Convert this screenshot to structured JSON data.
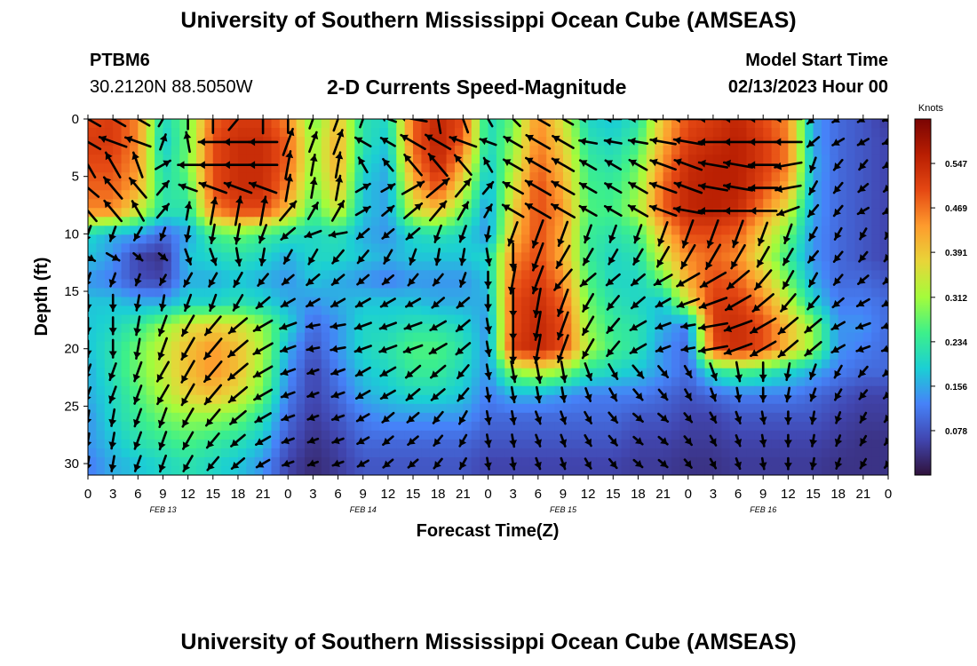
{
  "page": {
    "title": "University of Southern Mississippi Ocean Cube (AMSEAS)",
    "footer_title": "University of Southern Mississippi Ocean Cube (AMSEAS)",
    "station": "PTBM6",
    "coordinates": "30.2120N  88.5050W",
    "model_start_label": "Model Start Time",
    "model_start_value": "02/13/2023 Hour 00"
  },
  "colors": {
    "colormap": [
      "#30123b",
      "#4146b0",
      "#4682f8",
      "#1bcfd4",
      "#3df08a",
      "#a4fc3b",
      "#e8d539",
      "#fe9b2d",
      "#e54813",
      "#b81e02",
      "#7a0403"
    ],
    "arrow": "#000000"
  },
  "chart_data": {
    "type": "heatmap",
    "title": "2-D Currents Speed-Magnitude",
    "xlabel": "Forecast Time(Z)",
    "ylabel": "Depth (ft)",
    "x_tick_labels": [
      "0",
      "3",
      "6",
      "9",
      "12",
      "15",
      "18",
      "21",
      "0",
      "3",
      "6",
      "9",
      "12",
      "15",
      "18",
      "21",
      "0",
      "3",
      "6",
      "9",
      "12",
      "15",
      "18",
      "21",
      "0",
      "3",
      "6",
      "9",
      "12",
      "15",
      "18",
      "21",
      "0"
    ],
    "day_labels": [
      "FEB 13",
      "FEB 14",
      "FEB 15",
      "FEB 16"
    ],
    "x_range_hours": [
      0,
      96
    ],
    "y_tick_labels": [
      "0",
      "5",
      "10",
      "15",
      "20",
      "25",
      "30"
    ],
    "ylim": [
      31,
      0
    ],
    "colorbar": {
      "title": "Knots",
      "range": [
        0,
        0.625
      ],
      "tick_labels": [
        "0.547",
        "0.469",
        "0.391",
        "0.312",
        "0.234",
        "0.156",
        "0.078"
      ]
    },
    "hours": [
      0,
      3,
      6,
      9,
      12,
      15,
      18,
      21,
      24,
      27,
      30,
      33,
      36,
      39,
      42,
      45,
      48,
      51,
      54,
      57,
      60,
      63,
      66,
      69,
      72,
      75,
      78,
      81,
      84,
      87,
      90,
      93,
      96
    ],
    "depths_ft": [
      0,
      2,
      4,
      6,
      8,
      10,
      12,
      14,
      16,
      18,
      20,
      22,
      24,
      26,
      28,
      30
    ],
    "speed_knots": [
      [
        0.5,
        0.52,
        0.45,
        0.2,
        0.28,
        0.48,
        0.52,
        0.52,
        0.45,
        0.28,
        0.4,
        0.22,
        0.2,
        0.48,
        0.55,
        0.5,
        0.2,
        0.28,
        0.45,
        0.35,
        0.2,
        0.18,
        0.22,
        0.4,
        0.5,
        0.52,
        0.55,
        0.5,
        0.45,
        0.15,
        0.1,
        0.08,
        0.05
      ],
      [
        0.52,
        0.52,
        0.45,
        0.18,
        0.28,
        0.5,
        0.54,
        0.54,
        0.48,
        0.3,
        0.42,
        0.22,
        0.18,
        0.48,
        0.56,
        0.48,
        0.2,
        0.3,
        0.46,
        0.38,
        0.22,
        0.2,
        0.25,
        0.42,
        0.52,
        0.54,
        0.56,
        0.52,
        0.46,
        0.15,
        0.1,
        0.08,
        0.06
      ],
      [
        0.5,
        0.5,
        0.44,
        0.2,
        0.28,
        0.5,
        0.54,
        0.54,
        0.48,
        0.3,
        0.42,
        0.2,
        0.16,
        0.45,
        0.55,
        0.42,
        0.18,
        0.32,
        0.48,
        0.4,
        0.24,
        0.22,
        0.28,
        0.45,
        0.54,
        0.56,
        0.56,
        0.52,
        0.46,
        0.16,
        0.1,
        0.08,
        0.06
      ],
      [
        0.48,
        0.48,
        0.42,
        0.22,
        0.25,
        0.5,
        0.54,
        0.54,
        0.45,
        0.28,
        0.4,
        0.18,
        0.15,
        0.4,
        0.5,
        0.35,
        0.16,
        0.35,
        0.5,
        0.42,
        0.25,
        0.24,
        0.3,
        0.48,
        0.55,
        0.56,
        0.56,
        0.5,
        0.42,
        0.15,
        0.1,
        0.08,
        0.06
      ],
      [
        0.45,
        0.45,
        0.35,
        0.22,
        0.22,
        0.45,
        0.5,
        0.5,
        0.4,
        0.25,
        0.35,
        0.18,
        0.15,
        0.35,
        0.4,
        0.28,
        0.14,
        0.38,
        0.5,
        0.44,
        0.26,
        0.25,
        0.32,
        0.48,
        0.55,
        0.56,
        0.54,
        0.45,
        0.35,
        0.15,
        0.1,
        0.08,
        0.06
      ],
      [
        0.2,
        0.16,
        0.15,
        0.1,
        0.15,
        0.25,
        0.28,
        0.25,
        0.22,
        0.2,
        0.22,
        0.16,
        0.14,
        0.2,
        0.22,
        0.2,
        0.14,
        0.4,
        0.5,
        0.42,
        0.24,
        0.22,
        0.25,
        0.4,
        0.5,
        0.5,
        0.48,
        0.38,
        0.28,
        0.14,
        0.1,
        0.08,
        0.06
      ],
      [
        0.18,
        0.14,
        0.06,
        0.04,
        0.18,
        0.2,
        0.22,
        0.2,
        0.16,
        0.2,
        0.2,
        0.18,
        0.16,
        0.18,
        0.18,
        0.18,
        0.2,
        0.45,
        0.5,
        0.42,
        0.24,
        0.2,
        0.22,
        0.35,
        0.45,
        0.48,
        0.45,
        0.35,
        0.24,
        0.14,
        0.1,
        0.08,
        0.06
      ],
      [
        0.14,
        0.12,
        0.07,
        0.06,
        0.16,
        0.16,
        0.18,
        0.16,
        0.14,
        0.18,
        0.16,
        0.14,
        0.12,
        0.14,
        0.14,
        0.14,
        0.18,
        0.48,
        0.52,
        0.45,
        0.26,
        0.2,
        0.2,
        0.28,
        0.42,
        0.5,
        0.48,
        0.4,
        0.28,
        0.16,
        0.1,
        0.1,
        0.08
      ],
      [
        0.18,
        0.18,
        0.16,
        0.16,
        0.2,
        0.2,
        0.22,
        0.2,
        0.16,
        0.14,
        0.16,
        0.18,
        0.18,
        0.18,
        0.16,
        0.16,
        0.16,
        0.5,
        0.54,
        0.48,
        0.28,
        0.22,
        0.2,
        0.18,
        0.35,
        0.52,
        0.52,
        0.45,
        0.34,
        0.2,
        0.12,
        0.12,
        0.1
      ],
      [
        0.18,
        0.2,
        0.24,
        0.3,
        0.36,
        0.38,
        0.36,
        0.3,
        0.2,
        0.1,
        0.14,
        0.2,
        0.2,
        0.22,
        0.22,
        0.2,
        0.14,
        0.5,
        0.55,
        0.5,
        0.3,
        0.24,
        0.22,
        0.16,
        0.12,
        0.52,
        0.54,
        0.5,
        0.4,
        0.3,
        0.14,
        0.14,
        0.1
      ],
      [
        0.18,
        0.22,
        0.28,
        0.34,
        0.4,
        0.44,
        0.4,
        0.32,
        0.16,
        0.08,
        0.14,
        0.2,
        0.22,
        0.26,
        0.26,
        0.22,
        0.14,
        0.52,
        0.55,
        0.5,
        0.32,
        0.25,
        0.22,
        0.14,
        0.1,
        0.5,
        0.54,
        0.5,
        0.4,
        0.3,
        0.14,
        0.12,
        0.1
      ],
      [
        0.16,
        0.22,
        0.28,
        0.34,
        0.4,
        0.44,
        0.4,
        0.3,
        0.14,
        0.06,
        0.12,
        0.18,
        0.2,
        0.24,
        0.24,
        0.2,
        0.14,
        0.3,
        0.34,
        0.3,
        0.22,
        0.2,
        0.18,
        0.14,
        0.1,
        0.22,
        0.26,
        0.24,
        0.2,
        0.16,
        0.12,
        0.1,
        0.1
      ],
      [
        0.16,
        0.2,
        0.26,
        0.32,
        0.38,
        0.4,
        0.36,
        0.28,
        0.12,
        0.06,
        0.1,
        0.16,
        0.18,
        0.2,
        0.2,
        0.18,
        0.12,
        0.16,
        0.16,
        0.14,
        0.12,
        0.12,
        0.12,
        0.1,
        0.08,
        0.1,
        0.12,
        0.12,
        0.12,
        0.1,
        0.08,
        0.06,
        0.06
      ],
      [
        0.14,
        0.2,
        0.24,
        0.28,
        0.3,
        0.3,
        0.28,
        0.22,
        0.1,
        0.05,
        0.08,
        0.12,
        0.14,
        0.14,
        0.14,
        0.14,
        0.1,
        0.1,
        0.1,
        0.1,
        0.1,
        0.1,
        0.08,
        0.08,
        0.06,
        0.06,
        0.08,
        0.08,
        0.08,
        0.08,
        0.06,
        0.05,
        0.05
      ],
      [
        0.14,
        0.18,
        0.22,
        0.24,
        0.26,
        0.24,
        0.22,
        0.18,
        0.08,
        0.04,
        0.06,
        0.1,
        0.1,
        0.1,
        0.1,
        0.1,
        0.08,
        0.08,
        0.08,
        0.08,
        0.08,
        0.08,
        0.06,
        0.06,
        0.05,
        0.05,
        0.06,
        0.06,
        0.06,
        0.06,
        0.05,
        0.04,
        0.04
      ],
      [
        0.12,
        0.16,
        0.18,
        0.2,
        0.22,
        0.2,
        0.18,
        0.14,
        0.06,
        0.03,
        0.05,
        0.08,
        0.08,
        0.08,
        0.08,
        0.08,
        0.06,
        0.06,
        0.06,
        0.06,
        0.06,
        0.06,
        0.05,
        0.05,
        0.04,
        0.04,
        0.05,
        0.05,
        0.05,
        0.05,
        0.04,
        0.04,
        0.04
      ]
    ],
    "arrow_directions_deg": [
      [
        300,
        300,
        300,
        30,
        0,
        0,
        40,
        0,
        0,
        20,
        20,
        20,
        290,
        280,
        350,
        340,
        330,
        315,
        300,
        300,
        270,
        270,
        270,
        270,
        270,
        270,
        270,
        270,
        270,
        230,
        240,
        240,
        250
      ],
      [
        300,
        290,
        290,
        20,
        350,
        270,
        270,
        270,
        20,
        20,
        20,
        300,
        300,
        300,
        300,
        290,
        290,
        300,
        300,
        300,
        280,
        280,
        280,
        280,
        280,
        270,
        270,
        270,
        270,
        230,
        240,
        240,
        250
      ],
      [
        330,
        330,
        340,
        60,
        270,
        270,
        270,
        270,
        10,
        10,
        10,
        330,
        320,
        320,
        320,
        320,
        330,
        300,
        300,
        300,
        300,
        300,
        300,
        290,
        290,
        280,
        280,
        270,
        260,
        200,
        220,
        220,
        240
      ],
      [
        310,
        320,
        320,
        40,
        290,
        290,
        290,
        290,
        10,
        10,
        10,
        60,
        60,
        60,
        50,
        40,
        40,
        300,
        300,
        300,
        300,
        300,
        300,
        290,
        290,
        280,
        280,
        270,
        260,
        210,
        220,
        230,
        230
      ],
      [
        320,
        320,
        330,
        40,
        10,
        10,
        10,
        10,
        40,
        30,
        30,
        60,
        50,
        50,
        40,
        30,
        30,
        300,
        300,
        300,
        300,
        300,
        300,
        290,
        280,
        270,
        270,
        270,
        250,
        220,
        220,
        240,
        240
      ],
      [
        200,
        200,
        210,
        200,
        190,
        190,
        190,
        200,
        230,
        250,
        260,
        230,
        230,
        230,
        200,
        200,
        190,
        200,
        200,
        200,
        200,
        200,
        200,
        200,
        200,
        200,
        200,
        200,
        200,
        210,
        210,
        210,
        210
      ],
      [
        120,
        120,
        130,
        130,
        160,
        160,
        170,
        190,
        210,
        210,
        220,
        220,
        210,
        200,
        190,
        190,
        170,
        180,
        200,
        210,
        210,
        210,
        210,
        210,
        210,
        210,
        210,
        210,
        210,
        220,
        220,
        220,
        220
      ],
      [
        200,
        200,
        200,
        210,
        210,
        210,
        210,
        220,
        230,
        230,
        230,
        230,
        230,
        220,
        220,
        200,
        180,
        190,
        200,
        220,
        230,
        230,
        230,
        240,
        240,
        240,
        230,
        220,
        210,
        210,
        220,
        230,
        230
      ],
      [
        180,
        180,
        190,
        190,
        200,
        200,
        210,
        230,
        240,
        240,
        240,
        240,
        240,
        240,
        230,
        230,
        180,
        180,
        190,
        200,
        210,
        220,
        230,
        240,
        250,
        250,
        240,
        230,
        220,
        220,
        230,
        240,
        240
      ],
      [
        180,
        180,
        190,
        200,
        210,
        220,
        230,
        240,
        250,
        260,
        260,
        250,
        250,
        250,
        240,
        230,
        170,
        180,
        190,
        200,
        210,
        220,
        240,
        250,
        260,
        260,
        250,
        240,
        230,
        230,
        240,
        250,
        250
      ],
      [
        180,
        180,
        190,
        200,
        210,
        220,
        230,
        240,
        250,
        260,
        260,
        250,
        250,
        250,
        240,
        230,
        170,
        180,
        190,
        200,
        210,
        220,
        240,
        250,
        260,
        260,
        250,
        240,
        230,
        230,
        240,
        250,
        250
      ],
      [
        200,
        200,
        200,
        210,
        210,
        220,
        230,
        240,
        250,
        250,
        250,
        240,
        240,
        230,
        230,
        220,
        170,
        170,
        170,
        170,
        160,
        150,
        140,
        140,
        150,
        160,
        170,
        180,
        190,
        200,
        210,
        220,
        230
      ],
      [
        200,
        200,
        200,
        210,
        210,
        220,
        230,
        240,
        250,
        250,
        250,
        240,
        240,
        230,
        230,
        220,
        170,
        170,
        170,
        170,
        160,
        150,
        140,
        140,
        150,
        160,
        170,
        180,
        190,
        200,
        210,
        220,
        230
      ],
      [
        190,
        190,
        200,
        200,
        210,
        220,
        230,
        240,
        250,
        250,
        250,
        240,
        230,
        230,
        220,
        210,
        170,
        170,
        160,
        160,
        150,
        140,
        130,
        130,
        140,
        150,
        160,
        170,
        180,
        190,
        200,
        210,
        220
      ],
      [
        190,
        190,
        200,
        200,
        210,
        220,
        230,
        240,
        250,
        250,
        250,
        240,
        230,
        230,
        220,
        210,
        170,
        170,
        160,
        160,
        150,
        140,
        130,
        130,
        140,
        150,
        160,
        170,
        180,
        190,
        200,
        210,
        220
      ],
      [
        190,
        190,
        200,
        200,
        210,
        220,
        230,
        240,
        250,
        250,
        250,
        240,
        230,
        230,
        220,
        210,
        170,
        170,
        160,
        160,
        150,
        140,
        130,
        130,
        140,
        150,
        160,
        170,
        180,
        190,
        200,
        210,
        220
      ]
    ]
  }
}
